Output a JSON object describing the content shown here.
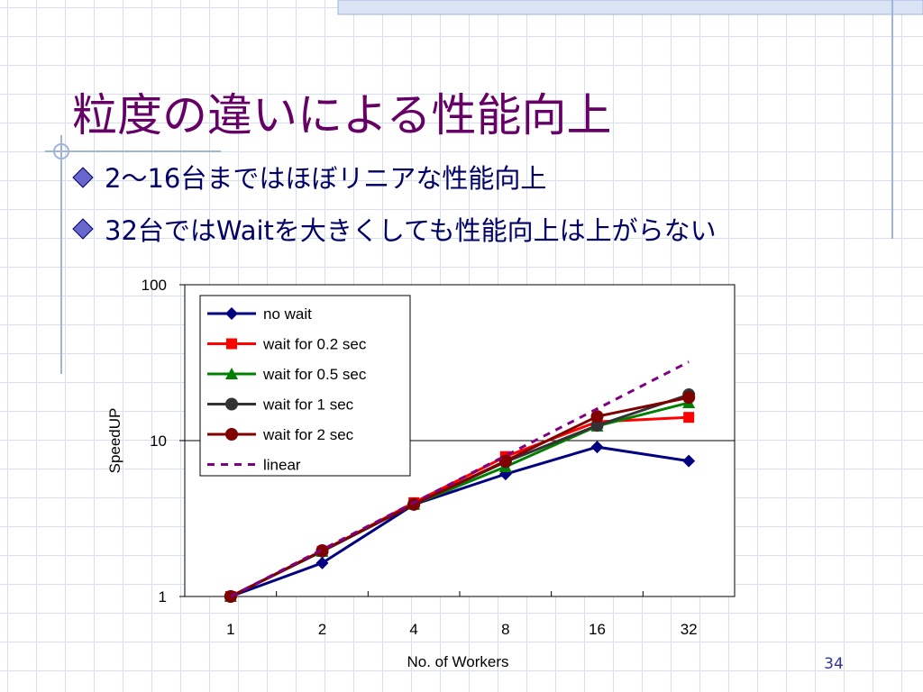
{
  "slide": {
    "title": "粒度の違いによる性能向上",
    "bullets": [
      "2～16台まではほぼリニアな性能向上",
      "32台ではWaitを大きくしても性能向上は上がらない"
    ],
    "page_number": "34"
  },
  "chart_data": {
    "type": "line",
    "x_label": "No. of Workers",
    "y_label": "SpeedUP",
    "categories": [
      "1",
      "2",
      "4",
      "8",
      "16",
      "32"
    ],
    "ylim": [
      1,
      100
    ],
    "yticks": [
      1,
      10,
      100
    ],
    "log_y": true,
    "grid": true,
    "legend": "upper left",
    "series": [
      {
        "name": "no wait",
        "color": "#000080",
        "marker": "diamond",
        "values": [
          1,
          1.64,
          3.89,
          6.1,
          9.1,
          7.4
        ]
      },
      {
        "name": "wait for 0.2 sec",
        "color": "#ff0000",
        "marker": "square",
        "values": [
          1,
          1.95,
          4.0,
          7.9,
          13.2,
          14.1
        ]
      },
      {
        "name": "wait for 0.5 sec",
        "color": "#008000",
        "marker": "triangle",
        "values": [
          1,
          1.95,
          3.9,
          6.8,
          12.4,
          17.5
        ]
      },
      {
        "name": "wait for 1 sec",
        "color": "#333333",
        "marker": "circle",
        "values": [
          1,
          1.95,
          3.9,
          7.3,
          12.5,
          19.7
        ]
      },
      {
        "name": "wait for 2 sec",
        "color": "#800000",
        "marker": "circle",
        "values": [
          1,
          1.97,
          3.9,
          7.4,
          14.3,
          18.9
        ]
      },
      {
        "name": "linear",
        "color": "#800080",
        "marker": "none",
        "dash": true,
        "values": [
          1,
          2,
          4,
          8,
          16,
          32
        ]
      }
    ]
  }
}
